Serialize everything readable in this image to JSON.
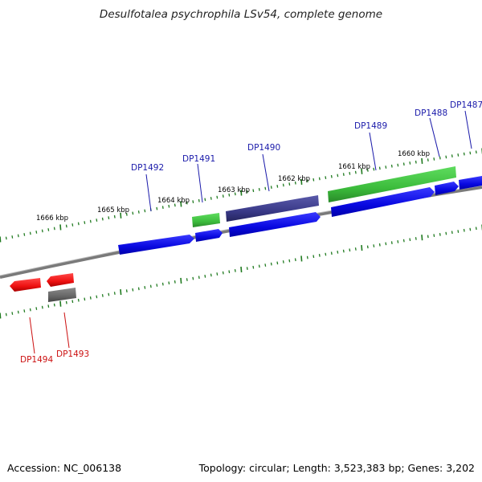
{
  "title": "Desulfotalea psychrophila LSv54, complete genome",
  "footer": {
    "accession": "Accession: NC_006138",
    "summary": "Topology: circular; Length: 3,523,383 bp; Genes: 3,202"
  },
  "colors": {
    "backbone": "#8a8a8a",
    "tick": "#1f7a1f",
    "cds_forward": "#0a0aee",
    "cds_other": "#3dbd3d",
    "cds_purple": "#3a3a8a",
    "cds_reverse": "#ee1111",
    "cds_gray": "#666666",
    "label_forward": "#1a1aaa",
    "label_reverse": "#cc1111"
  },
  "ticks": [
    {
      "kbp": 1666,
      "label": "1666 kbp"
    },
    {
      "kbp": 1665,
      "label": "1665 kbp"
    },
    {
      "kbp": 1664,
      "label": "1664 kbp"
    },
    {
      "kbp": 1663,
      "label": "1663 kbp"
    },
    {
      "kbp": 1662,
      "label": "1662 kbp"
    },
    {
      "kbp": 1661,
      "label": "1661 kbp"
    },
    {
      "kbp": 1660,
      "label": "1660 kbp"
    }
  ],
  "genes": [
    {
      "name": "DP1492",
      "strand": "forward"
    },
    {
      "name": "DP1491",
      "strand": "forward"
    },
    {
      "name": "DP1490",
      "strand": "forward"
    },
    {
      "name": "DP1489",
      "strand": "forward"
    },
    {
      "name": "DP1488",
      "strand": "forward"
    },
    {
      "name": "DP1487",
      "strand": "forward"
    },
    {
      "name": "DP1494",
      "strand": "reverse"
    },
    {
      "name": "DP1493",
      "strand": "reverse"
    }
  ]
}
